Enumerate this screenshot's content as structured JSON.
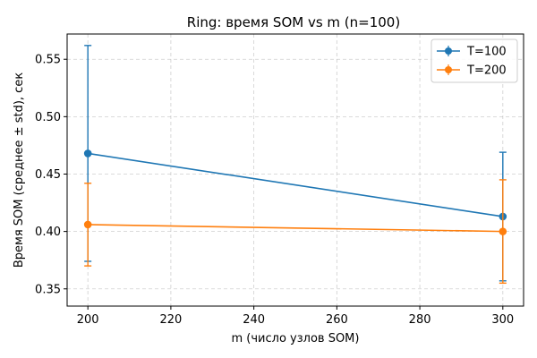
{
  "chart_data": {
    "type": "line",
    "title": "Ring: время SOM vs m (n=100)",
    "xlabel": "m (число узлов SOM)",
    "ylabel": "Время SOM (среднее ± std), сек",
    "xlim": [
      195,
      305
    ],
    "ylim": [
      0.335,
      0.572
    ],
    "xticks": [
      200,
      220,
      240,
      260,
      280,
      300
    ],
    "yticks": [
      0.35,
      0.4,
      0.45,
      0.5,
      0.55
    ],
    "ytick_labels": [
      "0.35",
      "0.40",
      "0.45",
      "0.50",
      "0.55"
    ],
    "grid": true,
    "legend_position": "top-right",
    "series": [
      {
        "name": "T=100",
        "color": "#1f77b4",
        "x": [
          200,
          300
        ],
        "y": [
          0.468,
          0.413
        ],
        "err": [
          0.094,
          0.056
        ]
      },
      {
        "name": "T=200",
        "color": "#ff7f0e",
        "x": [
          200,
          300
        ],
        "y": [
          0.406,
          0.4
        ],
        "err": [
          0.036,
          0.045
        ]
      }
    ]
  }
}
